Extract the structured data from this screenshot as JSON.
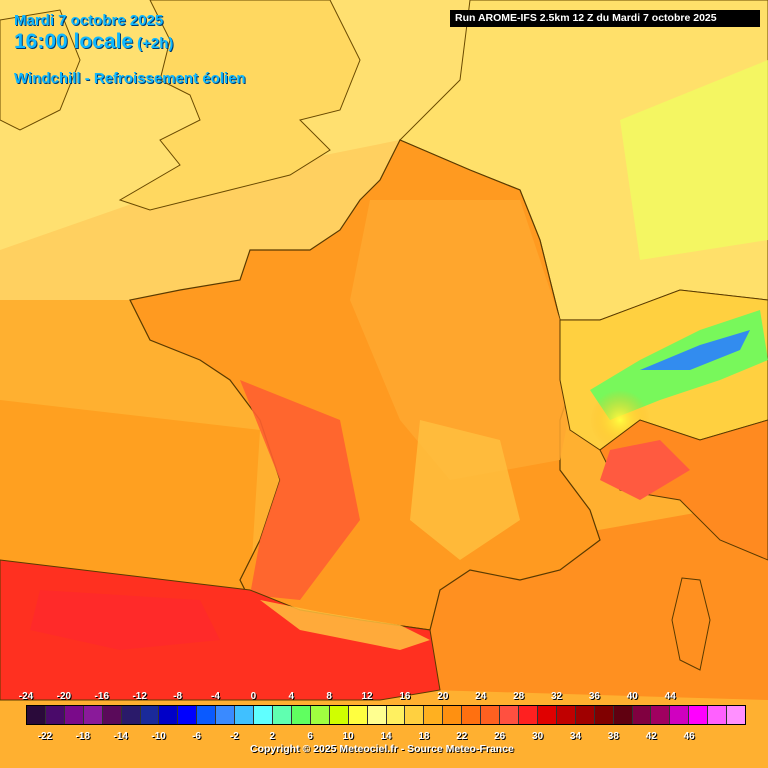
{
  "title": {
    "date": "Mardi 7 octobre 2025",
    "time": "16:00 locale",
    "offset": "(+2h)",
    "parameter": "Windchill - Refroissement éolien"
  },
  "run_label": "Run AROME-IFS 2.5km 12 Z du Mardi 7 octobre 2025",
  "legend": {
    "top_labels": [
      "-24",
      "-20",
      "-16",
      "-12",
      "-8",
      "-4",
      "0",
      "4",
      "8",
      "12",
      "16",
      "20",
      "24",
      "28",
      "32",
      "36",
      "40",
      "44"
    ],
    "bottom_labels": [
      "-22",
      "-18",
      "-14",
      "-10",
      "-6",
      "-2",
      "2",
      "6",
      "10",
      "14",
      "18",
      "22",
      "26",
      "30",
      "34",
      "38",
      "42",
      "46"
    ],
    "colors": [
      "#2a0a3a",
      "#4a0a6a",
      "#7a0a8a",
      "#8a1a9a",
      "#5a0a5a",
      "#2a1a6a",
      "#1a2a9a",
      "#0000c8",
      "#0000ff",
      "#0a5aff",
      "#3a8aff",
      "#40c0ff",
      "#60ffff",
      "#60ffb0",
      "#60ff60",
      "#a0ff40",
      "#d0ff00",
      "#ffff40",
      "#ffff90",
      "#fff060",
      "#ffd040",
      "#ffb020",
      "#ff9010",
      "#ff7010",
      "#ff6020",
      "#ff5040",
      "#ff2020",
      "#e00000",
      "#c00000",
      "#a00000",
      "#800000",
      "#600010",
      "#800040",
      "#a00060",
      "#d000c0",
      "#ff00ff",
      "#ff60ff",
      "#ff90ff"
    ]
  },
  "copyright": "Copyright © 2025 Meteociel.fr - Source Meteo-France"
}
